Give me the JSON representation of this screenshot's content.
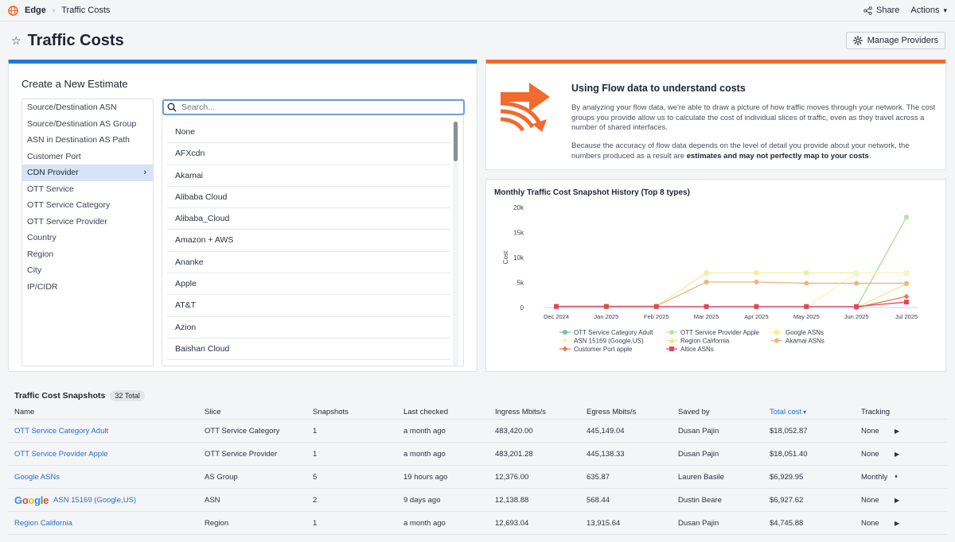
{
  "topbar": {
    "app": "Edge",
    "current": "Traffic Costs",
    "share": "Share",
    "actions": "Actions"
  },
  "header": {
    "title": "Traffic Costs",
    "manage_providers": "Manage Providers"
  },
  "estimate": {
    "title": "Create a New Estimate",
    "dimensions": [
      "Source/Destination ASN",
      "Source/Destination AS Group",
      "ASN in Destination AS Path",
      "Customer Port",
      "CDN Provider",
      "OTT Service",
      "OTT Service Category",
      "OTT Service Provider",
      "Country",
      "Region",
      "City",
      "IP/CIDR"
    ],
    "active_dimension": "CDN Provider",
    "search_placeholder": "Search...",
    "providers": [
      "None",
      "AFXcdn",
      "Akamai",
      "Alibaba Cloud",
      "Alibaba_Cloud",
      "Amazon + AWS",
      "Ananke",
      "Apple",
      "AT&T",
      "Azion",
      "Baishan Cloud"
    ]
  },
  "info": {
    "title": "Using Flow data to understand costs",
    "p1": "By analyzing your flow data, we're able to draw a picture of how traffic moves through your network. The cost groups you provide allow us to calculate the cost of individual slices of traffic, even as they travel across a number of shared interfaces.",
    "p2_prefix": "Because the accuracy of flow data depends on the level of detail you provide about your network, the numbers produced as a result are ",
    "p2_bold": "estimates and may not perfectly map to your costs",
    "p2_suffix": "."
  },
  "chart_data": {
    "type": "line",
    "title": "Monthly Traffic Cost Snapshot History (Top 8 types)",
    "ylabel": "Cost",
    "xlabel": "",
    "x": [
      "Dec 2024",
      "Jan 2025",
      "Feb 2025",
      "Mar 2025",
      "Apr 2025",
      "May 2025",
      "Jun 2025",
      "Jul 2025"
    ],
    "y_ticks": [
      "0",
      "5k",
      "10k",
      "15k",
      "20k"
    ],
    "ylim": [
      0,
      20000
    ],
    "grid": false,
    "legend_position": "bottom",
    "series": [
      {
        "name": "OTT Service Category Adult",
        "color": "#7ac48a",
        "marker": "circle",
        "values": [
          null,
          null,
          null,
          null,
          null,
          null,
          0,
          18052
        ]
      },
      {
        "name": "OTT Service Provider Apple",
        "color": "#b9e3a6",
        "marker": "circle",
        "values": [
          null,
          null,
          null,
          null,
          null,
          null,
          0,
          18051
        ]
      },
      {
        "name": "Google ASNs",
        "color": "#efefa0",
        "marker": "square",
        "values": [
          300,
          300,
          300,
          6900,
          6930,
          6930,
          6930,
          6930
        ]
      },
      {
        "name": "ASN 15169 (Google,US)",
        "color": "#f8f3c0",
        "marker": "circle",
        "values": [
          null,
          null,
          null,
          null,
          null,
          0,
          6900,
          6928
        ]
      },
      {
        "name": "Region California",
        "color": "#f5e58a",
        "marker": "triangle",
        "values": [
          null,
          null,
          null,
          null,
          null,
          null,
          0,
          4746
        ]
      },
      {
        "name": "Akamai ASNs",
        "color": "#f0b47a",
        "marker": "circle",
        "values": [
          300,
          300,
          300,
          5100,
          5100,
          4850,
          4850,
          4850
        ]
      },
      {
        "name": "Customer Port apple",
        "color": "#ea7650",
        "marker": "diamond",
        "values": [
          null,
          null,
          null,
          null,
          null,
          null,
          0,
          2200
        ]
      },
      {
        "name": "Altice ASNs",
        "color": "#e0475a",
        "marker": "square",
        "values": [
          200,
          200,
          200,
          200,
          200,
          200,
          200,
          1100
        ]
      }
    ]
  },
  "snapshots": {
    "title": "Traffic Cost Snapshots",
    "total": "32 Total",
    "columns": [
      "Name",
      "Slice",
      "Snapshots",
      "Last checked",
      "Ingress Mbits/s",
      "Egress Mbits/s",
      "Saved by",
      "Total cost",
      "Tracking"
    ],
    "google_logo": "Google",
    "rows": [
      {
        "name": "OTT Service Category Adult",
        "slice": "OTT Service Category",
        "snapshots": "1",
        "last_checked": "a month ago",
        "ingress": "483,420.00",
        "egress": "445,149.04",
        "saved_by": "Dusan Pajin",
        "total_cost": "$18,052.87",
        "tracking": "None",
        "action": "▶",
        "logo": false
      },
      {
        "name": "OTT Service Provider Apple",
        "slice": "OTT Service Provider",
        "snapshots": "1",
        "last_checked": "a month ago",
        "ingress": "483,201.28",
        "egress": "445,138.33",
        "saved_by": "Dusan Pajin",
        "total_cost": "$18,051.40",
        "tracking": "None",
        "action": "▶",
        "logo": false
      },
      {
        "name": "Google ASNs",
        "slice": "AS Group",
        "snapshots": "5",
        "last_checked": "19 hours ago",
        "ingress": "12,376.00",
        "egress": "635.87",
        "saved_by": "Lauren Basile",
        "total_cost": "$6,929.95",
        "tracking": "Monthly",
        "action": "⏸",
        "logo": false
      },
      {
        "name": "ASN 15169 (Google,US)",
        "slice": "ASN",
        "snapshots": "2",
        "last_checked": "9 days ago",
        "ingress": "12,138.88",
        "egress": "568.44",
        "saved_by": "Dustin Beare",
        "total_cost": "$6,927.62",
        "tracking": "None",
        "action": "▶",
        "logo": true
      },
      {
        "name": "Region California",
        "slice": "Region",
        "snapshots": "1",
        "last_checked": "a month ago",
        "ingress": "12,693.04",
        "egress": "13,915.64",
        "saved_by": "Dusan Pajin",
        "total_cost": "$4,745.88",
        "tracking": "None",
        "action": "▶",
        "logo": false
      }
    ]
  }
}
